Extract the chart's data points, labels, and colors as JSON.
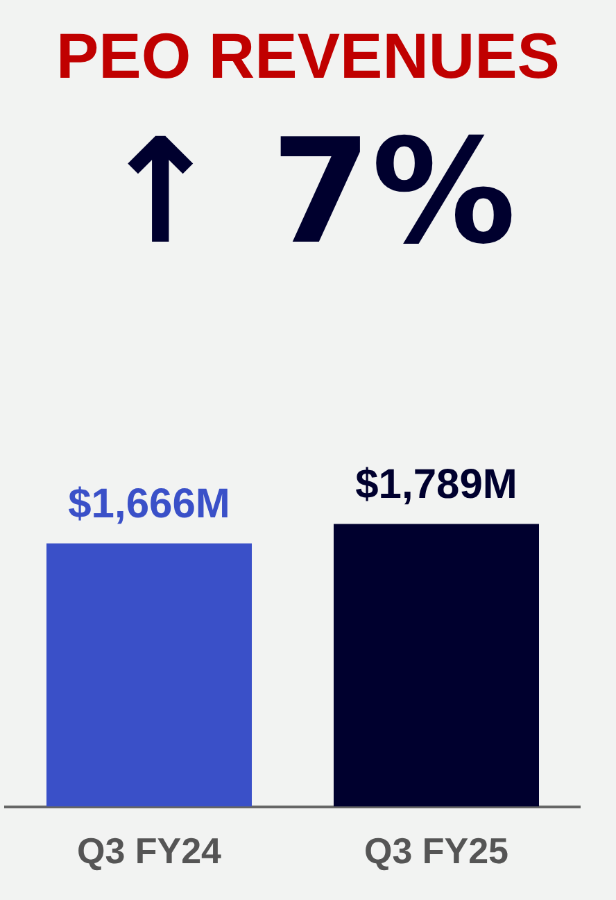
{
  "chart_data": {
    "type": "bar",
    "title": "PEO REVENUES",
    "subtitle": "↑ 7%",
    "categories": [
      "Q3 FY24",
      "Q3 FY25"
    ],
    "values": [
      1666,
      1789
    ],
    "colors": [
      "#3a50c8",
      "#00002e"
    ],
    "value_labels": [
      "$1,666M",
      "$1,789M"
    ],
    "grid": false,
    "legend": false,
    "tick_labels": "x"
  }
}
